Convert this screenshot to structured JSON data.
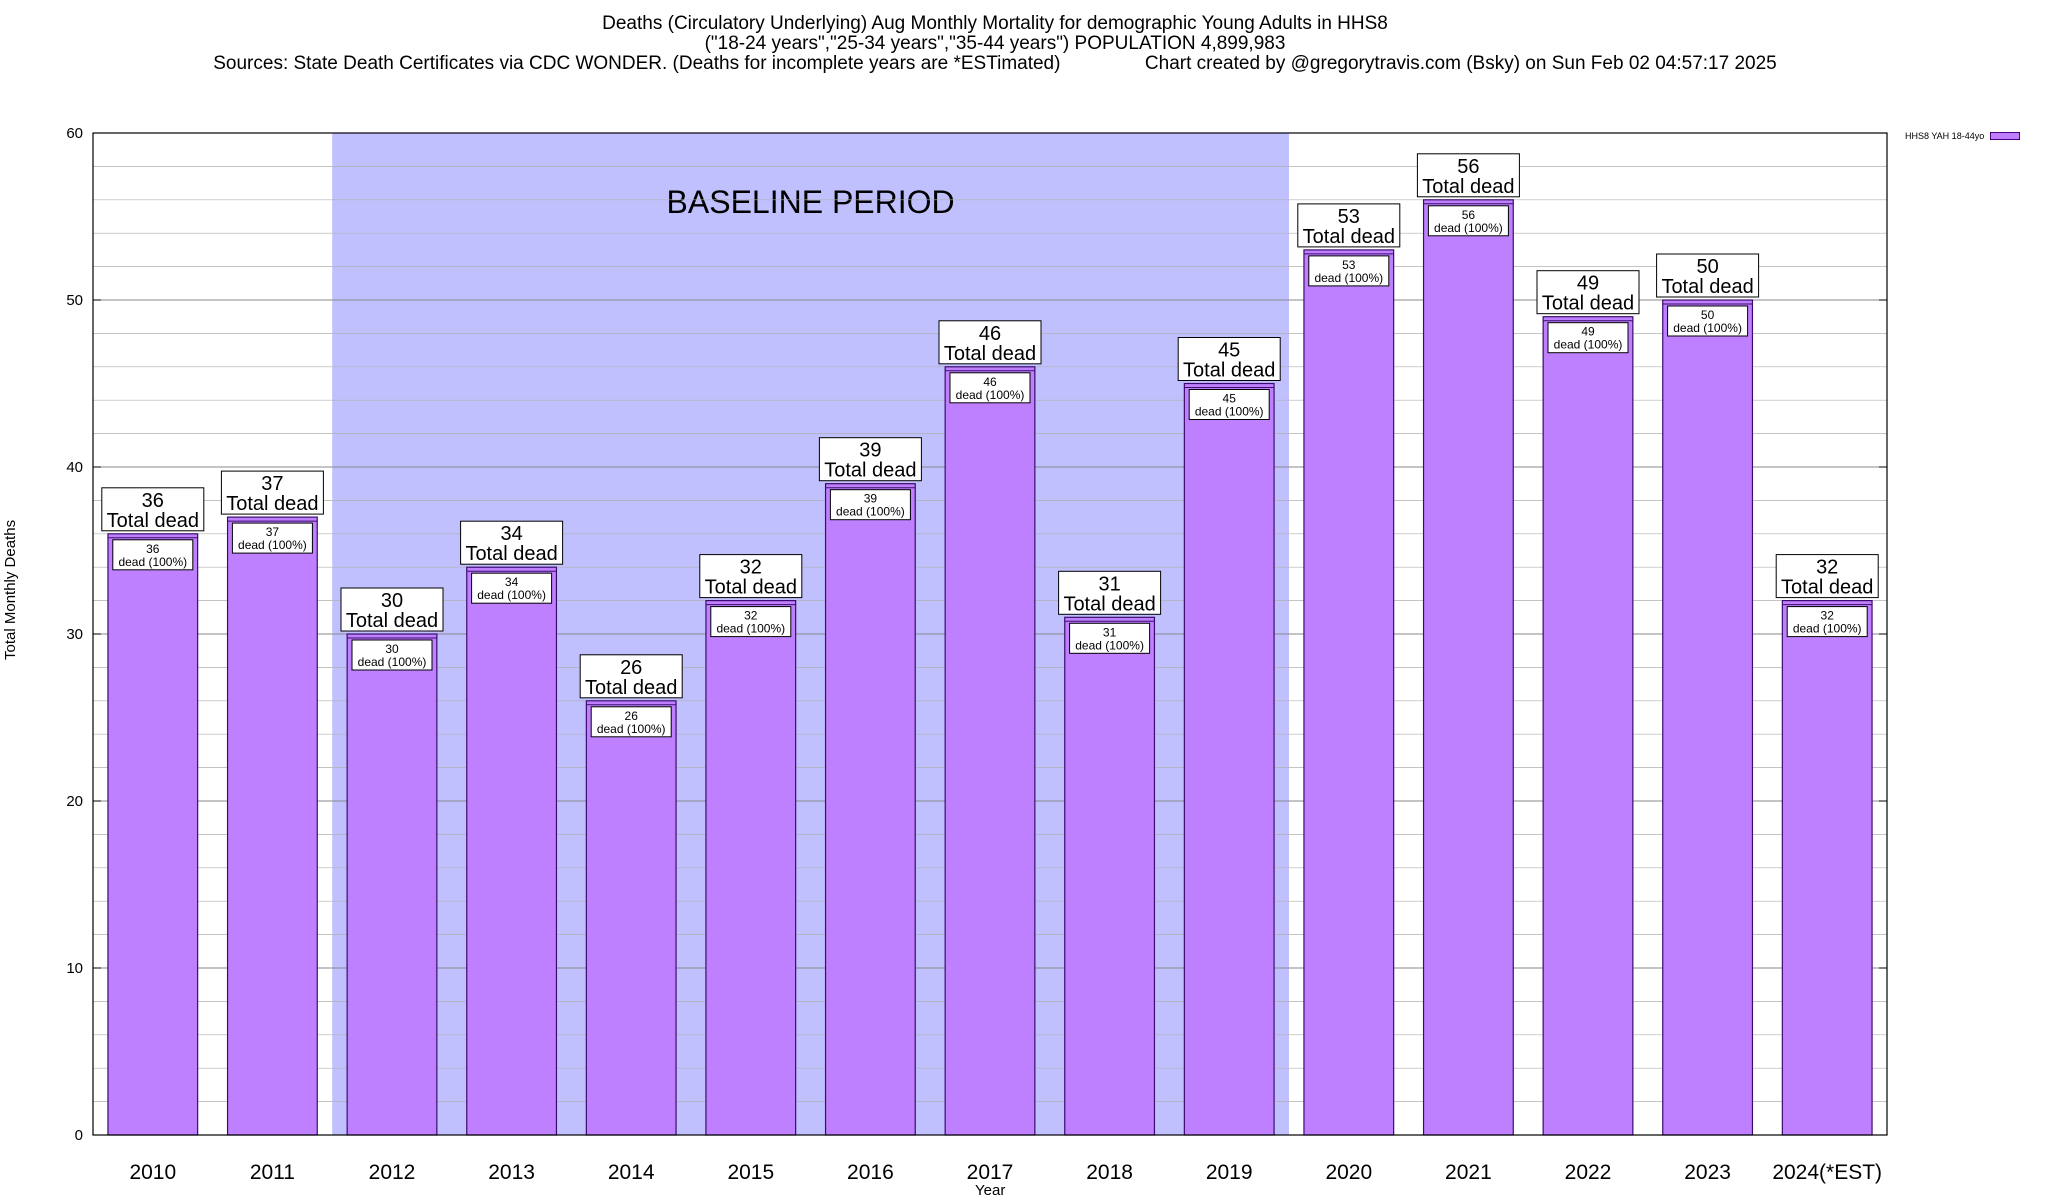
{
  "header": {
    "line1": "Deaths (Circulatory Underlying) Aug Monthly Mortality for demographic Young Adults in HHS8",
    "line2": "(\"18-24 years\",\"25-34 years\",\"35-44 years\") POPULATION 4,899,983",
    "line3": "Sources: State Death Certificates via CDC WONDER. (Deaths for incomplete years are *ESTimated)                Chart created by @gregorytravis.com (Bsky) on Sun Feb 02 04:57:17 2025"
  },
  "colors": {
    "bar_fill": "#bf80ff",
    "bar_stroke": "#3c0a6e",
    "baseline_fill": "#c0c0ff",
    "grid": "#b0b0b0"
  },
  "chart_data": {
    "type": "bar",
    "xlabel": "Year",
    "ylabel": "Total Monthly Deaths",
    "ylim": [
      0,
      60
    ],
    "yticks": [
      0,
      10,
      20,
      30,
      40,
      50,
      60
    ],
    "minor_step": 2,
    "categories": [
      "2010",
      "2011",
      "2012",
      "2013",
      "2014",
      "2015",
      "2016",
      "2017",
      "2018",
      "2019",
      "2020",
      "2021",
      "2022",
      "2023",
      "2024(*EST)"
    ],
    "series": [
      {
        "name": "HHS8 YAH 18-44yo",
        "values": [
          36,
          37,
          30,
          34,
          26,
          32,
          39,
          46,
          31,
          45,
          53,
          56,
          49,
          50,
          32
        ]
      }
    ],
    "total_label_suffix": "Total dead",
    "inner_label_suffix": "dead (100%)",
    "baseline": {
      "label": "BASELINE PERIOD",
      "start": "2012",
      "end": "2019"
    },
    "legend_position": "top-right"
  }
}
